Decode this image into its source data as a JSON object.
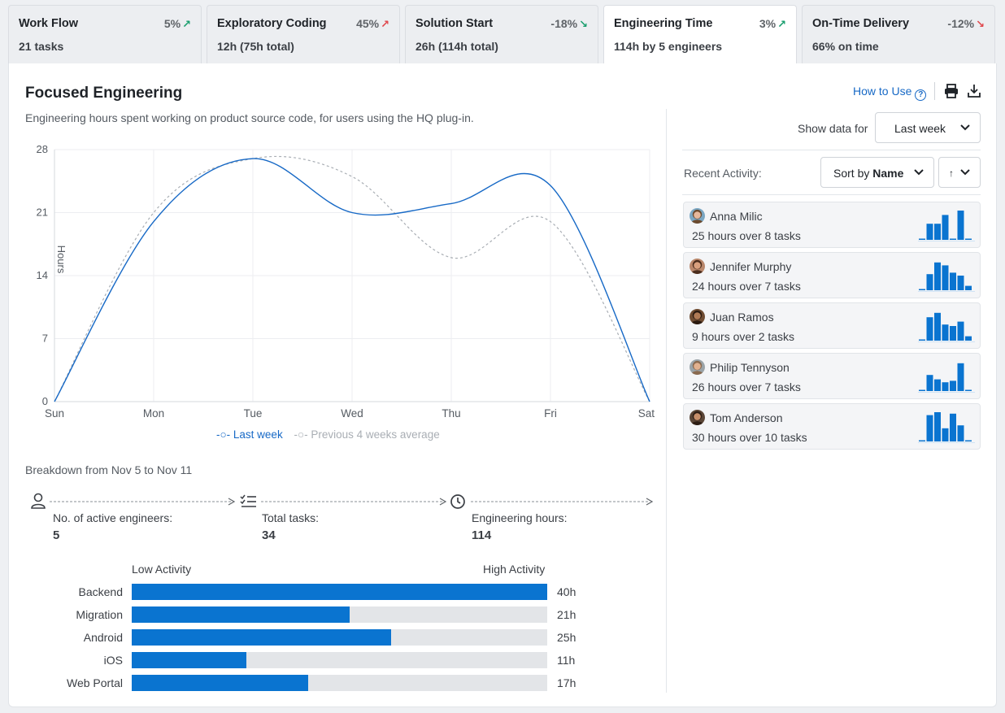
{
  "tabs": [
    {
      "title": "Work Flow",
      "delta": "5%",
      "dir": "up",
      "sub": "21 tasks",
      "active": false
    },
    {
      "title": "Exploratory Coding",
      "delta": "45%",
      "dir": "up-red",
      "sub": "12h (75h total)",
      "active": false
    },
    {
      "title": "Solution Start",
      "delta": "-18%",
      "dir": "down-green",
      "sub": "26h (114h total)",
      "active": false
    },
    {
      "title": "Engineering Time",
      "delta": "3%",
      "dir": "up",
      "sub": "114h by 5 engineers",
      "active": true
    },
    {
      "title": "On-Time Delivery",
      "delta": "-12%",
      "dir": "down-red",
      "sub": "66% on time",
      "active": false
    }
  ],
  "panel": {
    "title": "Focused Engineering",
    "description": "Engineering hours spent working on product source code, for users using the HQ plug-in.",
    "how_to_use": "How to Use",
    "help_glyph": "?"
  },
  "chart_data": {
    "type": "line",
    "categories": [
      "Sun",
      "Mon",
      "Tue",
      "Wed",
      "Thu",
      "Fri",
      "Sat"
    ],
    "series": [
      {
        "name": "Last week",
        "values": [
          0,
          20,
          27,
          21,
          22,
          24,
          0
        ],
        "color": "#1769c6",
        "dashed": false
      },
      {
        "name": "Previous 4 weeks average",
        "values": [
          0,
          21,
          27,
          25,
          16,
          20,
          0
        ],
        "color": "#a9aeb4",
        "dashed": true
      }
    ],
    "ylabel": "Hours",
    "ylim": [
      0,
      28
    ],
    "yticks": [
      0,
      7,
      14,
      21,
      28
    ],
    "grid": true,
    "legend": "bottom"
  },
  "breakdown": {
    "title": "Breakdown from Nov 5 to Nov 11",
    "items": [
      {
        "label": "No. of active engineers:",
        "value": "5",
        "icon": "user-icon"
      },
      {
        "label": "Total tasks:",
        "value": "34",
        "icon": "checklist-icon"
      },
      {
        "label": "Engineering hours:",
        "value": "114",
        "icon": "clock-icon"
      }
    ]
  },
  "activity_bars": {
    "low_label": "Low Activity",
    "high_label": "High Activity",
    "max_hours": 40,
    "rows": [
      {
        "name": "Backend",
        "hours": 40,
        "label": "40h"
      },
      {
        "name": "Migration",
        "hours": 21,
        "label": "21h"
      },
      {
        "name": "Android",
        "hours": 25,
        "label": "25h"
      },
      {
        "name": "iOS",
        "hours": 11,
        "label": "11h"
      },
      {
        "name": "Web Portal",
        "hours": 17,
        "label": "17h"
      }
    ]
  },
  "filters": {
    "show_data_for": "Show data for",
    "period": "Last week",
    "recent_activity": "Recent Activity:",
    "sort_prefix": "Sort by ",
    "sort_value": "Name",
    "order_glyph": "↑"
  },
  "people": [
    {
      "name": "Anna Milic",
      "summary": "25 hours over 8 tasks",
      "bars": [
        0,
        0.55,
        0.55,
        0.85,
        0,
        1.0,
        0
      ],
      "skin": "#e6b89c",
      "hair": "#6b4a2e",
      "bg": "#7aa6c2"
    },
    {
      "name": "Jennifer Murphy",
      "summary": "24 hours over 7 tasks",
      "bars": [
        0,
        0.55,
        0.95,
        0.85,
        0.6,
        0.5,
        0.15
      ],
      "skin": "#d9a07e",
      "hair": "#4a2c1c",
      "bg": "#b9876b"
    },
    {
      "name": "Juan Ramos",
      "summary": "9 hours over 2 tasks",
      "bars": [
        0,
        0.8,
        0.95,
        0.55,
        0.5,
        0.65,
        0.15
      ],
      "skin": "#b07a55",
      "hair": "#2b1a10",
      "bg": "#6f4c32"
    },
    {
      "name": "Philip Tennyson",
      "summary": "26 hours over 7 tasks",
      "bars": [
        0,
        0.55,
        0.4,
        0.3,
        0.35,
        0.95,
        0
      ],
      "skin": "#e2b18f",
      "hair": "#8a6a4f",
      "bg": "#9aa3a8"
    },
    {
      "name": "Tom Anderson",
      "summary": "30 hours over 10 tasks",
      "bars": [
        0,
        0.9,
        1.0,
        0.45,
        0.95,
        0.55,
        0
      ],
      "skin": "#c78e69",
      "hair": "#2d1d14",
      "bg": "#5a4536"
    }
  ]
}
